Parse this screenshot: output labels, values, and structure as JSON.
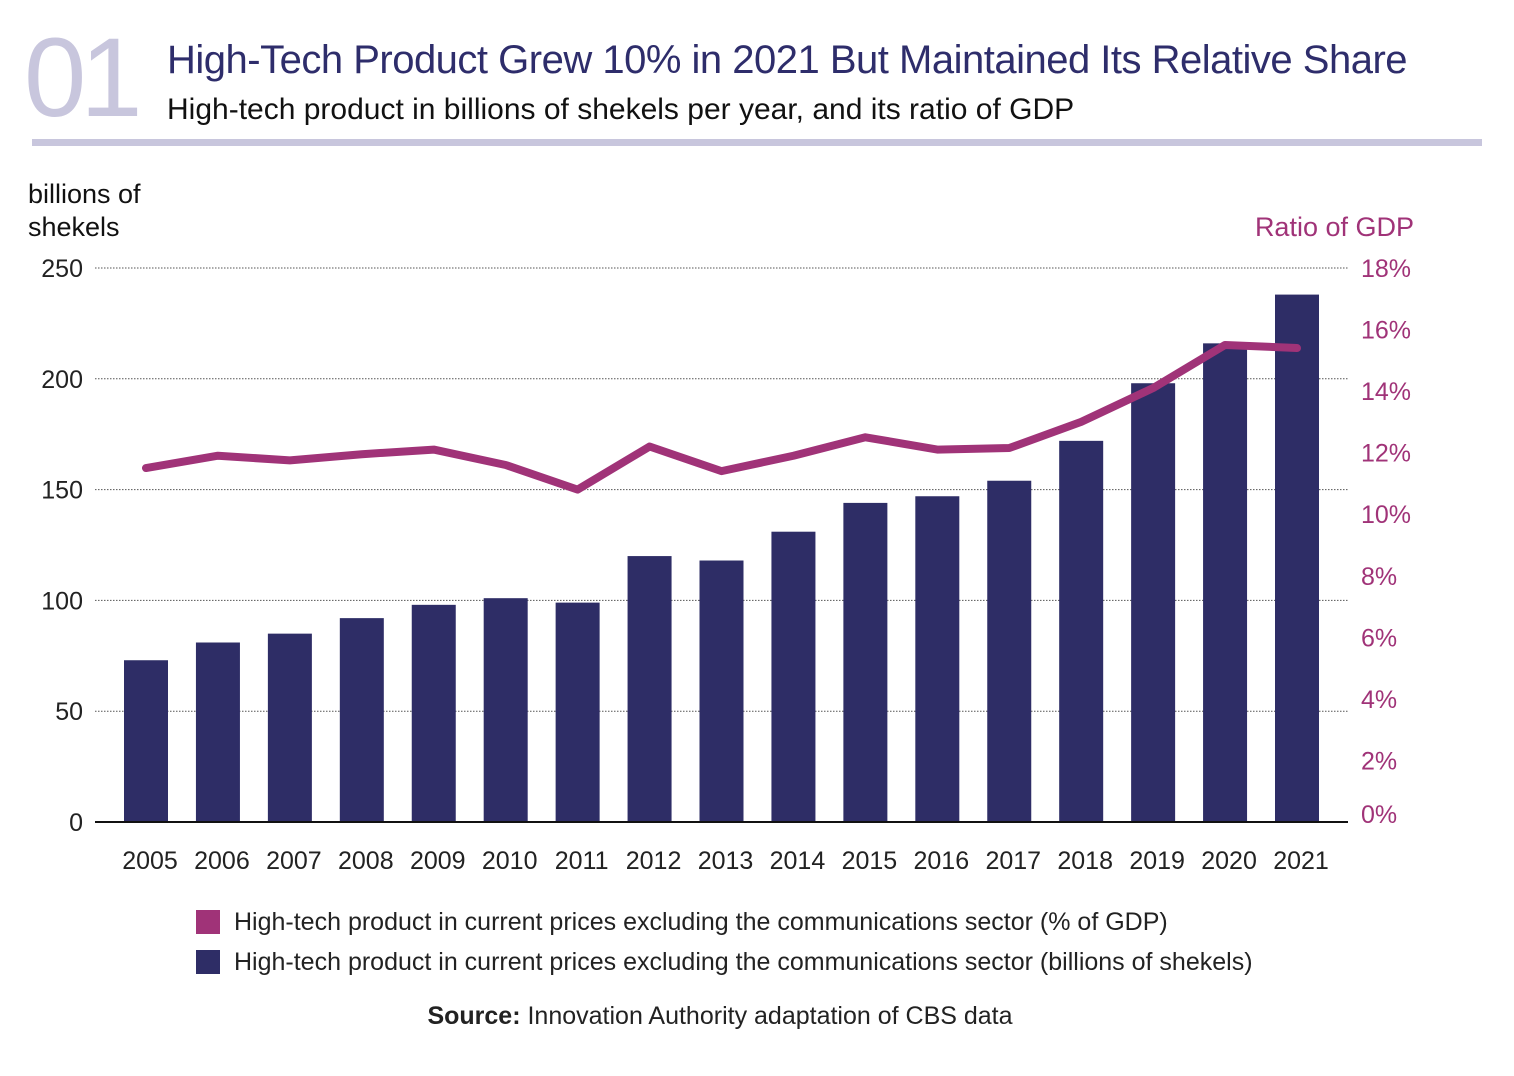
{
  "header": {
    "number": "01",
    "title": "High-Tech Product Grew 10% in 2021 But Maintained Its Relative Share",
    "subtitle": "High-tech product in billions of shekels per year, and its ratio of GDP"
  },
  "chart_data": {
    "type": "bar+line",
    "categories": [
      "2005",
      "2006",
      "2007",
      "2008",
      "2009",
      "2010",
      "2011",
      "2012",
      "2013",
      "2014",
      "2015",
      "2016",
      "2017",
      "2018",
      "2019",
      "2020",
      "2021"
    ],
    "series": [
      {
        "name": "High-tech product in current prices excluding the communications sector (billions of shekels)",
        "type": "bar",
        "axis": "left",
        "color": "#2e2d66",
        "values": [
          73,
          81,
          85,
          92,
          98,
          101,
          99,
          120,
          118,
          131,
          144,
          147,
          154,
          172,
          198,
          216,
          238
        ]
      },
      {
        "name": "High-tech product in current prices excluding the communications sector (% of GDP)",
        "type": "line",
        "axis": "right",
        "color": "#a03378",
        "values": [
          11.5,
          11.9,
          11.75,
          11.95,
          12.1,
          11.6,
          10.8,
          12.2,
          11.4,
          11.9,
          12.5,
          12.1,
          12.15,
          13.0,
          14.1,
          15.5,
          15.4
        ]
      }
    ],
    "ylabel": "billions of shekels",
    "y2label": "Ratio of GDP",
    "ylim": [
      0,
      250
    ],
    "y2lim": [
      0,
      18
    ],
    "yticks": [
      "0",
      "50",
      "100",
      "150",
      "200",
      "250"
    ],
    "y2ticks": [
      "0%",
      "2%",
      "4%",
      "6%",
      "8%",
      "10%",
      "12%",
      "14%",
      "16%",
      "18%"
    ],
    "grid": true,
    "legend_position": "bottom"
  },
  "source": {
    "label": "Source:",
    "text": " Innovation Authority adaptation of CBS data"
  }
}
